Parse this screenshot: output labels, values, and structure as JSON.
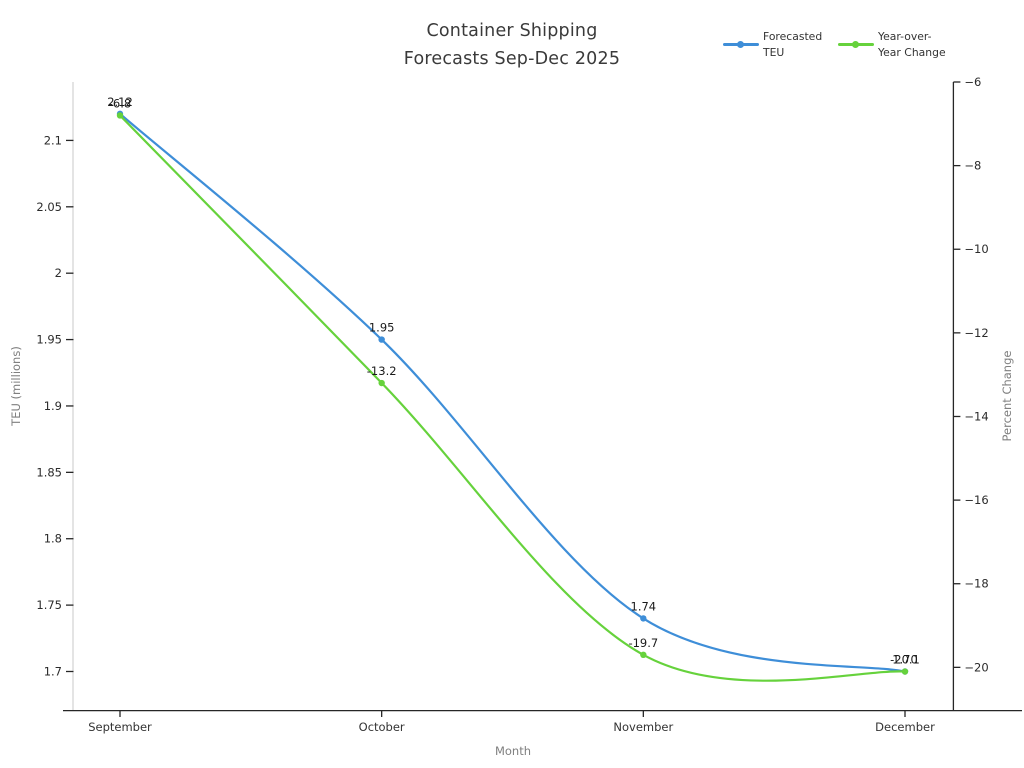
{
  "title": {
    "line1": "Container Shipping",
    "line2": "Forecasts Sep-Dec 2025"
  },
  "axis_titles": {
    "x": "Month",
    "y_left": "TEU (millions)",
    "y_right": "Percent Change"
  },
  "legend": {
    "items": [
      {
        "name": "Forecasted TEU",
        "label_lines": [
          "Forecasted",
          "TEU"
        ],
        "color": "#3E8ED8"
      },
      {
        "name": "Year-over-Year Change",
        "label_lines": [
          "Year-over-",
          "Year Change"
        ],
        "color": "#66D23C"
      }
    ]
  },
  "chart_data": {
    "type": "line",
    "title": "Container Shipping Forecasts Sep-Dec 2025",
    "xlabel": "Month",
    "ylabel_left": "TEU (millions)",
    "ylabel_right": "Percent Change",
    "categories": [
      "September",
      "October",
      "November",
      "December"
    ],
    "series": [
      {
        "name": "Forecasted TEU",
        "axis": "left",
        "color": "#3E8ED8",
        "values": [
          2.12,
          1.95,
          1.74,
          1.7
        ],
        "point_labels": [
          "2.12",
          "1.95",
          "1.74",
          "1.70"
        ]
      },
      {
        "name": "Year-over-Year Change",
        "axis": "right",
        "color": "#66D23C",
        "values": [
          -6.8,
          -13.2,
          -19.7,
          -20.1
        ],
        "point_labels": [
          "-6.8",
          "-13.2",
          "-19.7",
          "-20.1"
        ]
      }
    ],
    "y_left_ticks": {
      "values": [
        2.1,
        2.05,
        2.0,
        1.95,
        1.9,
        1.85,
        1.8,
        1.75,
        1.7
      ],
      "labels": [
        "2.1",
        "2.05",
        "2",
        "1.95",
        "1.9",
        "1.85",
        "1.8",
        "1.75",
        "1.7"
      ]
    },
    "y_right_ticks": {
      "values": [
        -6,
        -8,
        -10,
        -12,
        -14,
        -16,
        -18,
        -20
      ],
      "labels": [
        "−6",
        "−8",
        "−10",
        "−12",
        "−14",
        "−16",
        "−18",
        "−20"
      ]
    },
    "ylim_left": [
      1.671,
      2.144
    ],
    "ylim_right": [
      -21.02,
      -6.0
    ],
    "grid": false,
    "legend_position": "top-right",
    "smooth_curves": true
  }
}
